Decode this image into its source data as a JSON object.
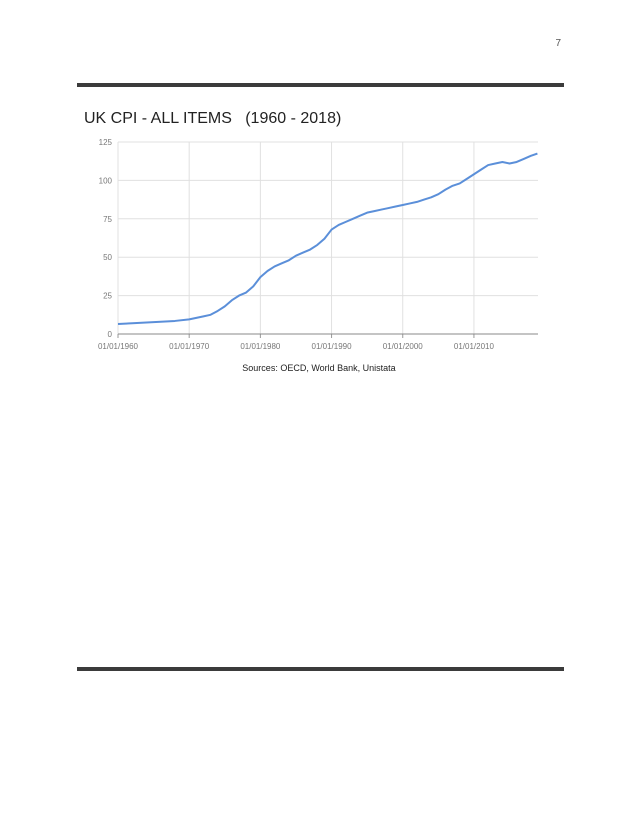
{
  "page": {
    "number": "7"
  },
  "chart_data": {
    "type": "line",
    "title": "UK CPI - ALL ITEMS   (1960 - 2018)",
    "xlabel": "",
    "ylabel": "",
    "ylim": [
      0,
      125
    ],
    "xlim": [
      "1960-01-01",
      "2019-01-01"
    ],
    "y_ticks": [
      "0",
      "25",
      "50",
      "75",
      "100",
      "125"
    ],
    "x_ticks": [
      "01/01/1960",
      "01/01/1970",
      "01/01/1980",
      "01/01/1990",
      "01/01/2000",
      "01/01/2010"
    ],
    "grid": true,
    "line_color": "#5b8fd9",
    "series": [
      {
        "x": [
          "1960-01-01",
          "1962-01-01",
          "1964-01-01",
          "1966-01-01",
          "1968-01-01",
          "1970-01-01",
          "1971-01-01",
          "1972-01-01",
          "1973-01-01",
          "1974-01-01",
          "1975-01-01",
          "1976-01-01",
          "1977-01-01",
          "1978-01-01",
          "1979-01-01",
          "1980-01-01",
          "1981-01-01",
          "1982-01-01",
          "1983-01-01",
          "1984-01-01",
          "1985-01-01",
          "1986-01-01",
          "1987-01-01",
          "1988-01-01",
          "1989-01-01",
          "1990-01-01",
          "1991-01-01",
          "1992-01-01",
          "1993-01-01",
          "1994-01-01",
          "1995-01-01",
          "1996-01-01",
          "1997-01-01",
          "1998-01-01",
          "1999-01-01",
          "2000-01-01",
          "2001-01-01",
          "2002-01-01",
          "2003-01-01",
          "2004-01-01",
          "2005-01-01",
          "2006-01-01",
          "2007-01-01",
          "2008-01-01",
          "2009-01-01",
          "2010-01-01",
          "2011-01-01",
          "2012-01-01",
          "2013-01-01",
          "2014-01-01",
          "2015-01-01",
          "2016-01-01",
          "2017-01-01",
          "2018-01-01",
          "2018-12-01"
        ],
        "values": [
          6.5,
          7,
          7.5,
          8,
          8.5,
          9.5,
          10.5,
          11.5,
          12.5,
          15,
          18,
          22,
          25,
          27,
          31,
          37,
          41,
          44,
          46,
          48,
          51,
          53,
          55,
          58,
          62,
          68,
          71,
          73,
          75,
          77,
          79,
          80,
          81,
          82,
          83,
          84,
          85,
          86,
          87.5,
          89,
          91,
          94,
          96.5,
          98,
          101,
          104,
          107,
          110,
          111,
          112,
          111,
          112,
          114,
          116,
          117.5
        ]
      }
    ]
  },
  "source_text": "Sources: OECD, World Bank, Unistata"
}
